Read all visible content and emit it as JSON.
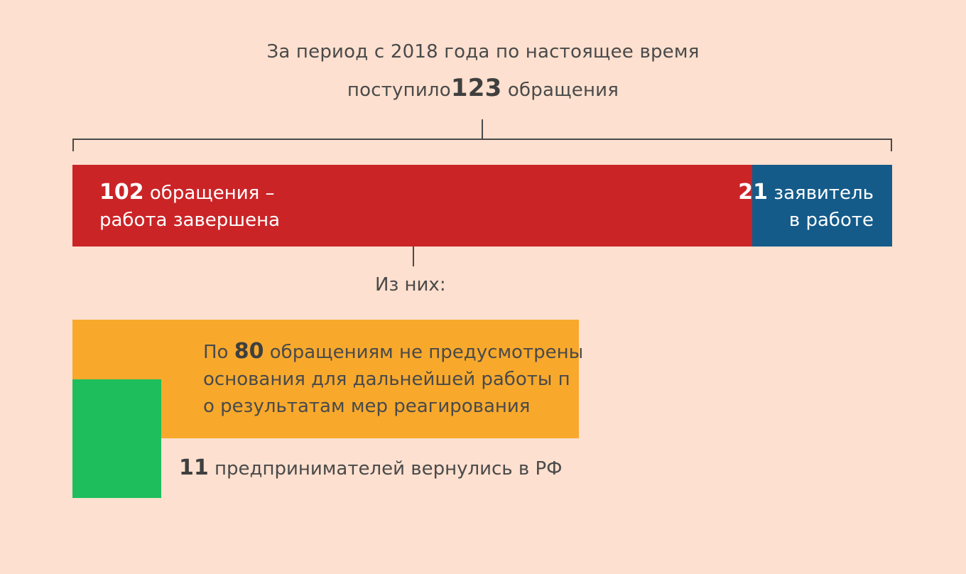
{
  "header": {
    "line1": "За период с 2018 года по настоящее время",
    "line2_prefix": "поступило",
    "total": "123",
    "line2_suffix": " обращения"
  },
  "colors": {
    "background": "#fde0cf",
    "completed": "#cb2427",
    "in_progress": "#145b8a",
    "no_grounds": "#f8a92c",
    "returned": "#1ebe5c"
  },
  "chart_data": {
    "type": "bar",
    "orientation": "horizontal",
    "total": 123,
    "stacked": [
      {
        "name": "работа завершена",
        "value": 102
      },
      {
        "name": "в работе",
        "value": 21
      }
    ],
    "breakdown_label": "Из них:",
    "breakdown": [
      {
        "name": "не предусмотрены основания для дальнейшей работы",
        "value": 80
      },
      {
        "name": "предпринимателей вернулись в РФ",
        "value": 11
      }
    ]
  },
  "segments": {
    "completed": {
      "num": "102",
      "line1_rest": " обращения –",
      "line2": "работа завершена"
    },
    "in_progress": {
      "num": "21",
      "line1_rest": " заявитель",
      "line2": "в работе"
    }
  },
  "breakdown": {
    "label": "Из них:",
    "orange": {
      "prefix": "По ",
      "num": "80",
      "line1_rest": " обращениям не предусмотрены",
      "line2": "основания для дальнейшей работы п",
      "line3": "о результатам мер реагирования"
    },
    "green": {
      "num": "11",
      "rest": " предпринимателей вернулись в РФ"
    }
  }
}
